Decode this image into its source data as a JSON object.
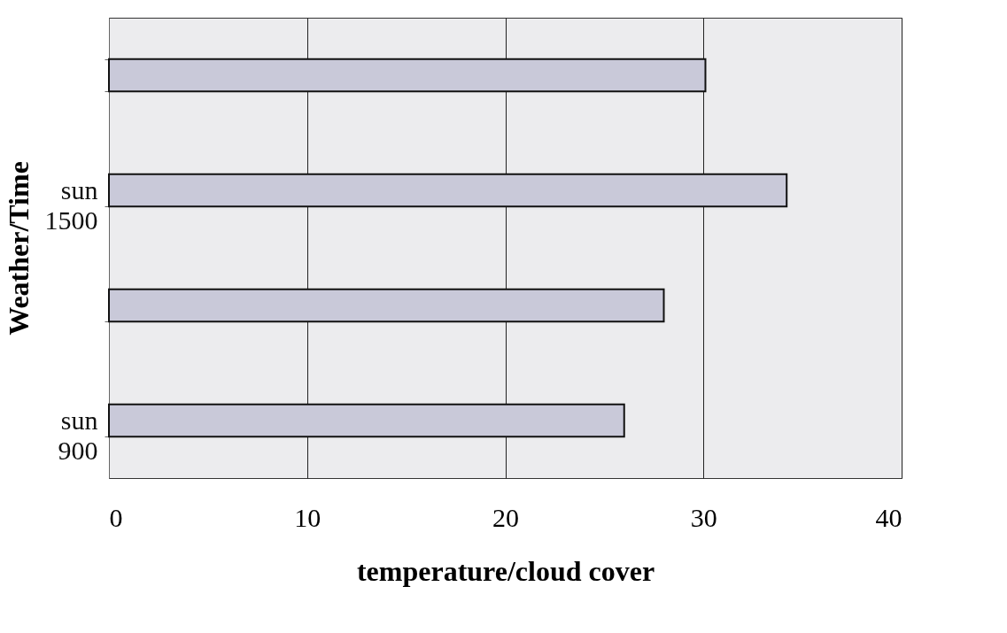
{
  "chart_data": {
    "type": "bar",
    "orientation": "horizontal",
    "categories": [
      null,
      "sun\n1500",
      null,
      "sun\n900"
    ],
    "values": [
      30.1,
      34.2,
      28,
      26
    ],
    "color": "#c9c9d9",
    "xlim": [
      0,
      40
    ],
    "xticks": [
      0,
      10,
      20,
      30,
      40
    ],
    "xlabel": "temperature/cloud cover",
    "ylabel": "Weather/Time",
    "grid": "x"
  }
}
